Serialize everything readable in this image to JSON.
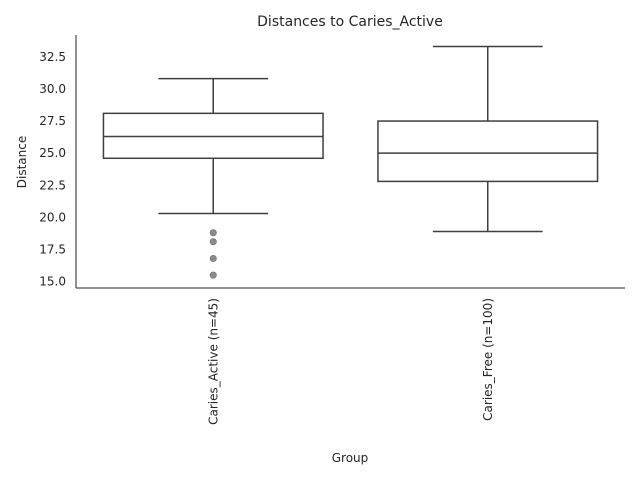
{
  "chart_data": {
    "type": "box",
    "title": "Distances to Caries_Active",
    "xlabel": "Group",
    "ylabel": "Distance",
    "ylim": [
      14.5,
      34.2
    ],
    "yticks": [
      15.0,
      17.5,
      20.0,
      22.5,
      25.0,
      27.5,
      30.0,
      32.5
    ],
    "ytick_labels": [
      "15.0",
      "17.5",
      "20.0",
      "22.5",
      "25.0",
      "27.5",
      "30.0",
      "32.5"
    ],
    "grid": false,
    "categories": [
      "Caries_Active (n=45)",
      "Caries_Free (n=100)"
    ],
    "boxes": [
      {
        "whisker_low": 20.3,
        "q1": 24.6,
        "median": 26.3,
        "q3": 28.1,
        "whisker_high": 30.8,
        "outliers": [
          18.8,
          18.1,
          16.8,
          15.5
        ]
      },
      {
        "whisker_low": 18.9,
        "q1": 22.8,
        "median": 25.0,
        "q3": 27.5,
        "whisker_high": 33.3,
        "outliers": []
      }
    ],
    "colors": {
      "line": "#3f3f3f",
      "outlier": "#8c8c8c",
      "axis": "#262626"
    }
  }
}
